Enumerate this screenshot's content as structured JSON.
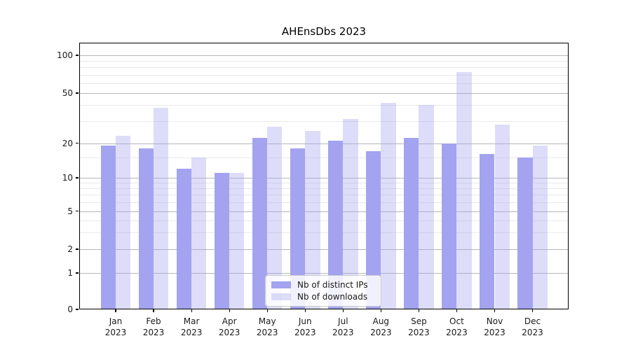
{
  "chart_data": {
    "type": "bar",
    "title": "AHEnsDbs 2023",
    "categories": [
      "Jan",
      "Feb",
      "Mar",
      "Apr",
      "May",
      "Jun",
      "Jul",
      "Aug",
      "Sep",
      "Oct",
      "Nov",
      "Dec"
    ],
    "category_year": "2023",
    "series": [
      {
        "name": "Nb of distinct IPs",
        "color": "#a3a3f0",
        "opacity": 1,
        "values": [
          19,
          18,
          12,
          11,
          22,
          18,
          21,
          17,
          22,
          20,
          16,
          15
        ]
      },
      {
        "name": "Nb of downloads",
        "color": "#a3a3f0",
        "opacity": 0.37,
        "values": [
          23,
          38,
          15,
          11,
          27,
          25,
          31,
          42,
          40,
          74,
          28,
          19
        ]
      }
    ],
    "yscale": "symlog",
    "yticks": [
      0,
      1,
      2,
      5,
      10,
      20,
      50,
      100
    ],
    "minor_yticks": [
      3,
      4,
      6,
      7,
      8,
      9,
      15,
      30,
      40,
      60,
      70,
      80,
      90
    ],
    "ylim": [
      0,
      126
    ],
    "grid": "on",
    "legend_position": "lower-center"
  },
  "colors": {
    "bar_ips": "#a3a3f0",
    "bar_downloads_effective": "#dcdcf9",
    "major_grid": "#b6b6b6",
    "minor_grid": "#e9e9e9",
    "axis": "#000000",
    "text": "#1a1a1a",
    "legend_border": "#cccccc",
    "background": "#ffffff"
  }
}
